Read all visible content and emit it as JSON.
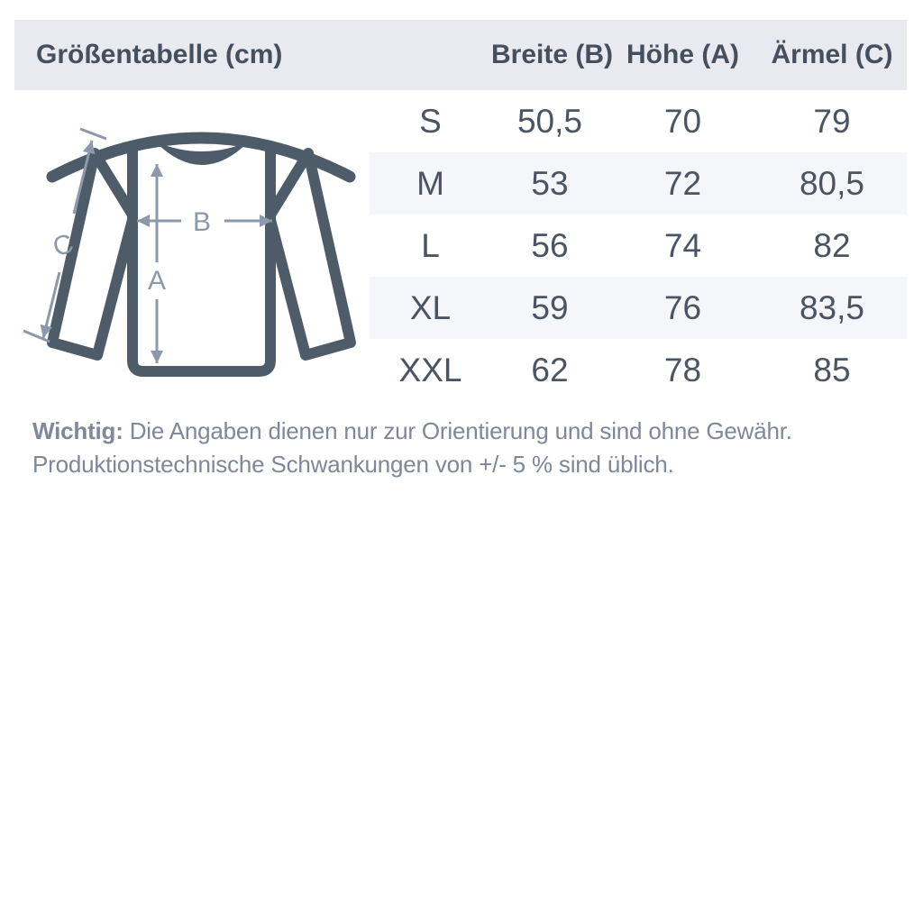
{
  "header": {
    "title": "Größentabelle (cm)",
    "columns": [
      "Breite (B)",
      "Höhe (A)",
      "Ärmel (C)"
    ]
  },
  "table": {
    "rows": [
      {
        "size": "S",
        "breite": "50,5",
        "hoehe": "70",
        "aermel": "79"
      },
      {
        "size": "M",
        "breite": "53",
        "hoehe": "72",
        "aermel": "80,5"
      },
      {
        "size": "L",
        "breite": "56",
        "hoehe": "74",
        "aermel": "82"
      },
      {
        "size": "XL",
        "breite": "59",
        "hoehe": "76",
        "aermel": "83,5"
      },
      {
        "size": "XXL",
        "breite": "62",
        "hoehe": "78",
        "aermel": "85"
      }
    ]
  },
  "diagram": {
    "labels": {
      "a": "A",
      "b": "B",
      "c": "C"
    }
  },
  "footer": {
    "bold": "Wichtig:",
    "line1_rest": " Die Angaben dienen nur zur Orientierung und sind ohne Gewähr.",
    "line2": "Produktionstechnische Schwankungen von +/- 5 % sind üblich."
  },
  "colors": {
    "header_bar_bg": "#e8eaef",
    "row_stripe_bg": "#f4f6f9",
    "heading_text": "#454f5e",
    "value_text": "#4a5463",
    "sweater_outline": "#4e5b69",
    "dimension_arrow": "#8c99aa",
    "footer_text": "#7e8898"
  }
}
